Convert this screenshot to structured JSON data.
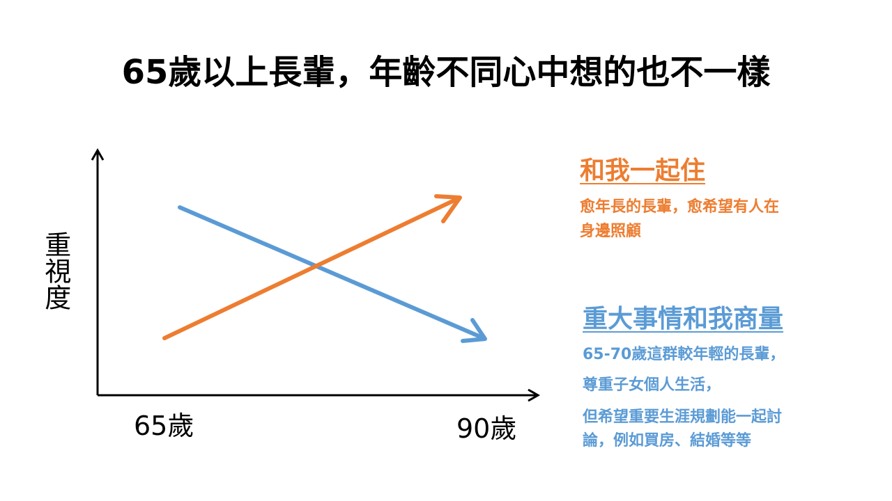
{
  "title": "65歲以上長輩，年齡不同心中想的也不一樣",
  "y_axis_label": "重視度",
  "x_labels": [
    "65歲",
    "90歲"
  ],
  "orange": {
    "heading": "和我一起住",
    "body": [
      "愈年長的長輩，愈希望有人在",
      "身邊照顧"
    ]
  },
  "blue": {
    "heading": "重大事情和我商量",
    "body": [
      "65-70歲這群較年輕的長輩，",
      "尊重子女個人生活，",
      "但希望重要生涯規劃能一起討",
      "論，例如買房、結婚等等"
    ]
  }
}
